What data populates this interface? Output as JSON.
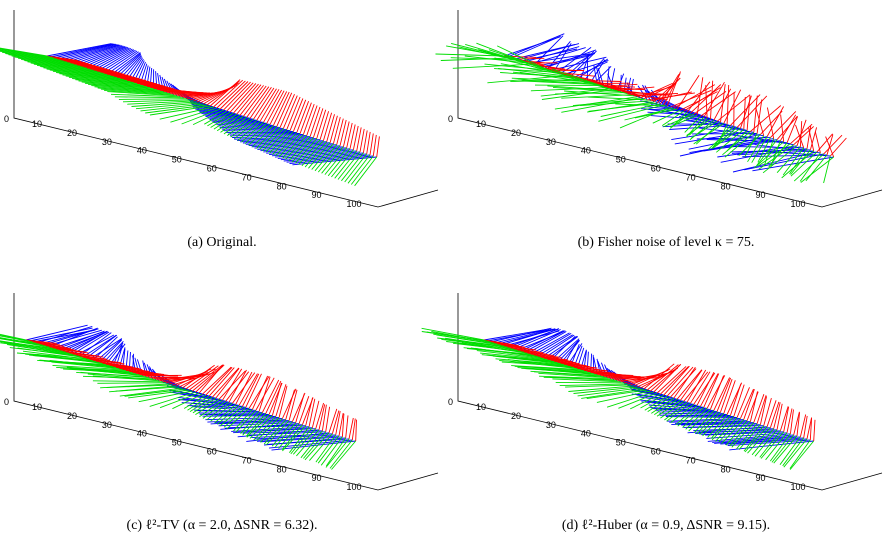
{
  "chart_data": [
    {
      "type": "line",
      "caption": "(a) Original.",
      "xlabel": "",
      "ylabel": "",
      "x_ticks": [
        0,
        10,
        20,
        30,
        40,
        50,
        60,
        70,
        80,
        90,
        100
      ],
      "x_range": [
        0,
        100
      ],
      "series": [
        {
          "color": "#0000ff",
          "profile": [
            {
              "x": 1,
              "angle": 0.62,
              "len": 0.72
            },
            {
              "x": 20,
              "angle": 1.05,
              "len": 0.55
            },
            {
              "x": 30,
              "angle": 1.45,
              "len": 0.35
            },
            {
              "x": 40,
              "angle": 1.85,
              "len": 0.25
            },
            {
              "x": 50,
              "angle": 2.35,
              "len": 0.32
            },
            {
              "x": 60,
              "angle": 2.55,
              "len": 0.55
            },
            {
              "x": 80,
              "angle": 2.85,
              "len": 0.72
            },
            {
              "x": 100,
              "angle": 2.95,
              "len": 0.78
            }
          ]
        },
        {
          "color": "#ff0000",
          "profile": [
            {
              "x": 1,
              "angle": 0.1,
              "len": 0.28
            },
            {
              "x": 30,
              "angle": 0.1,
              "len": 0.35
            },
            {
              "x": 40,
              "angle": 0.45,
              "len": 0.4
            },
            {
              "x": 50,
              "angle": 1.1,
              "len": 0.6
            },
            {
              "x": 70,
              "angle": 1.35,
              "len": 0.62
            },
            {
              "x": 100,
              "angle": 1.5,
              "len": 0.35
            }
          ]
        },
        {
          "color": "#00dd00",
          "profile": [
            {
              "x": 1,
              "angle": 2.55,
              "len": 0.7
            },
            {
              "x": 40,
              "angle": 2.7,
              "len": 0.7
            },
            {
              "x": 50,
              "angle": 3.05,
              "len": 0.55
            },
            {
              "x": 55,
              "angle": 3.75,
              "len": 0.25
            },
            {
              "x": 70,
              "angle": 4.15,
              "len": 0.35
            },
            {
              "x": 100,
              "angle": 4.25,
              "len": 0.45
            }
          ]
        }
      ]
    },
    {
      "type": "line",
      "caption": "(b) Fisher noise of level κ = 75.",
      "xlabel": "",
      "ylabel": "",
      "x_ticks": [
        0,
        10,
        20,
        30,
        40,
        50,
        60,
        70,
        80,
        90,
        100
      ],
      "x_range": [
        0,
        100
      ],
      "noise": 0.35,
      "series": [
        {
          "color": "#0000ff",
          "profile": [
            {
              "x": 1,
              "angle": 0.62,
              "len": 0.72
            },
            {
              "x": 20,
              "angle": 1.05,
              "len": 0.55
            },
            {
              "x": 30,
              "angle": 1.45,
              "len": 0.35
            },
            {
              "x": 40,
              "angle": 1.85,
              "len": 0.25
            },
            {
              "x": 50,
              "angle": 2.35,
              "len": 0.32
            },
            {
              "x": 60,
              "angle": 2.55,
              "len": 0.55
            },
            {
              "x": 80,
              "angle": 2.85,
              "len": 0.72
            },
            {
              "x": 100,
              "angle": 2.95,
              "len": 0.78
            }
          ]
        },
        {
          "color": "#ff0000",
          "profile": [
            {
              "x": 1,
              "angle": 0.1,
              "len": 0.28
            },
            {
              "x": 30,
              "angle": 0.1,
              "len": 0.35
            },
            {
              "x": 40,
              "angle": 0.45,
              "len": 0.4
            },
            {
              "x": 50,
              "angle": 1.1,
              "len": 0.6
            },
            {
              "x": 70,
              "angle": 1.35,
              "len": 0.62
            },
            {
              "x": 100,
              "angle": 1.5,
              "len": 0.35
            }
          ]
        },
        {
          "color": "#00dd00",
          "profile": [
            {
              "x": 1,
              "angle": 2.55,
              "len": 0.7
            },
            {
              "x": 40,
              "angle": 2.7,
              "len": 0.7
            },
            {
              "x": 50,
              "angle": 3.05,
              "len": 0.55
            },
            {
              "x": 55,
              "angle": 3.75,
              "len": 0.25
            },
            {
              "x": 70,
              "angle": 4.15,
              "len": 0.35
            },
            {
              "x": 100,
              "angle": 4.25,
              "len": 0.45
            }
          ]
        }
      ]
    },
    {
      "type": "line",
      "caption": "(c) ℓ²-TV (α = 2.0, ΔSNR = 6.32).",
      "xlabel": "",
      "ylabel": "",
      "x_ticks": [
        0,
        10,
        20,
        30,
        40,
        50,
        60,
        70,
        80,
        90,
        100
      ],
      "x_range": [
        0,
        100
      ],
      "noise": 0.06,
      "series": [
        {
          "color": "#0000ff",
          "profile": [
            {
              "x": 1,
              "angle": 0.62,
              "len": 0.72
            },
            {
              "x": 20,
              "angle": 1.05,
              "len": 0.55
            },
            {
              "x": 30,
              "angle": 1.45,
              "len": 0.35
            },
            {
              "x": 40,
              "angle": 1.85,
              "len": 0.25
            },
            {
              "x": 50,
              "angle": 2.35,
              "len": 0.32
            },
            {
              "x": 60,
              "angle": 2.55,
              "len": 0.55
            },
            {
              "x": 80,
              "angle": 2.85,
              "len": 0.72
            },
            {
              "x": 100,
              "angle": 2.95,
              "len": 0.78
            }
          ]
        },
        {
          "color": "#ff0000",
          "profile": [
            {
              "x": 1,
              "angle": 0.1,
              "len": 0.28
            },
            {
              "x": 30,
              "angle": 0.1,
              "len": 0.35
            },
            {
              "x": 40,
              "angle": 0.45,
              "len": 0.4
            },
            {
              "x": 50,
              "angle": 1.1,
              "len": 0.6
            },
            {
              "x": 70,
              "angle": 1.35,
              "len": 0.62
            },
            {
              "x": 100,
              "angle": 1.5,
              "len": 0.35
            }
          ]
        },
        {
          "color": "#00dd00",
          "profile": [
            {
              "x": 1,
              "angle": 2.55,
              "len": 0.7
            },
            {
              "x": 40,
              "angle": 2.7,
              "len": 0.7
            },
            {
              "x": 50,
              "angle": 3.05,
              "len": 0.55
            },
            {
              "x": 55,
              "angle": 3.75,
              "len": 0.25
            },
            {
              "x": 70,
              "angle": 4.15,
              "len": 0.35
            },
            {
              "x": 100,
              "angle": 4.25,
              "len": 0.45
            }
          ]
        }
      ]
    },
    {
      "type": "line",
      "caption": "(d) ℓ²-Huber (α = 0.9, ΔSNR = 9.15).",
      "xlabel": "",
      "ylabel": "",
      "x_ticks": [
        0,
        10,
        20,
        30,
        40,
        50,
        60,
        70,
        80,
        90,
        100
      ],
      "x_range": [
        0,
        100
      ],
      "noise": 0.045,
      "series": [
        {
          "color": "#0000ff",
          "profile": [
            {
              "x": 1,
              "angle": 0.62,
              "len": 0.72
            },
            {
              "x": 20,
              "angle": 1.05,
              "len": 0.55
            },
            {
              "x": 30,
              "angle": 1.45,
              "len": 0.35
            },
            {
              "x": 40,
              "angle": 1.85,
              "len": 0.25
            },
            {
              "x": 50,
              "angle": 2.35,
              "len": 0.32
            },
            {
              "x": 60,
              "angle": 2.55,
              "len": 0.55
            },
            {
              "x": 80,
              "angle": 2.85,
              "len": 0.72
            },
            {
              "x": 100,
              "angle": 2.95,
              "len": 0.78
            }
          ]
        },
        {
          "color": "#ff0000",
          "profile": [
            {
              "x": 1,
              "angle": 0.1,
              "len": 0.28
            },
            {
              "x": 30,
              "angle": 0.1,
              "len": 0.35
            },
            {
              "x": 40,
              "angle": 0.45,
              "len": 0.4
            },
            {
              "x": 50,
              "angle": 1.1,
              "len": 0.6
            },
            {
              "x": 70,
              "angle": 1.35,
              "len": 0.62
            },
            {
              "x": 100,
              "angle": 1.5,
              "len": 0.35
            }
          ]
        },
        {
          "color": "#00dd00",
          "profile": [
            {
              "x": 1,
              "angle": 2.55,
              "len": 0.7
            },
            {
              "x": 40,
              "angle": 2.7,
              "len": 0.7
            },
            {
              "x": 50,
              "angle": 3.05,
              "len": 0.55
            },
            {
              "x": 55,
              "angle": 3.75,
              "len": 0.25
            },
            {
              "x": 70,
              "angle": 4.15,
              "len": 0.35
            },
            {
              "x": 100,
              "angle": 4.25,
              "len": 0.45
            }
          ]
        }
      ]
    }
  ]
}
